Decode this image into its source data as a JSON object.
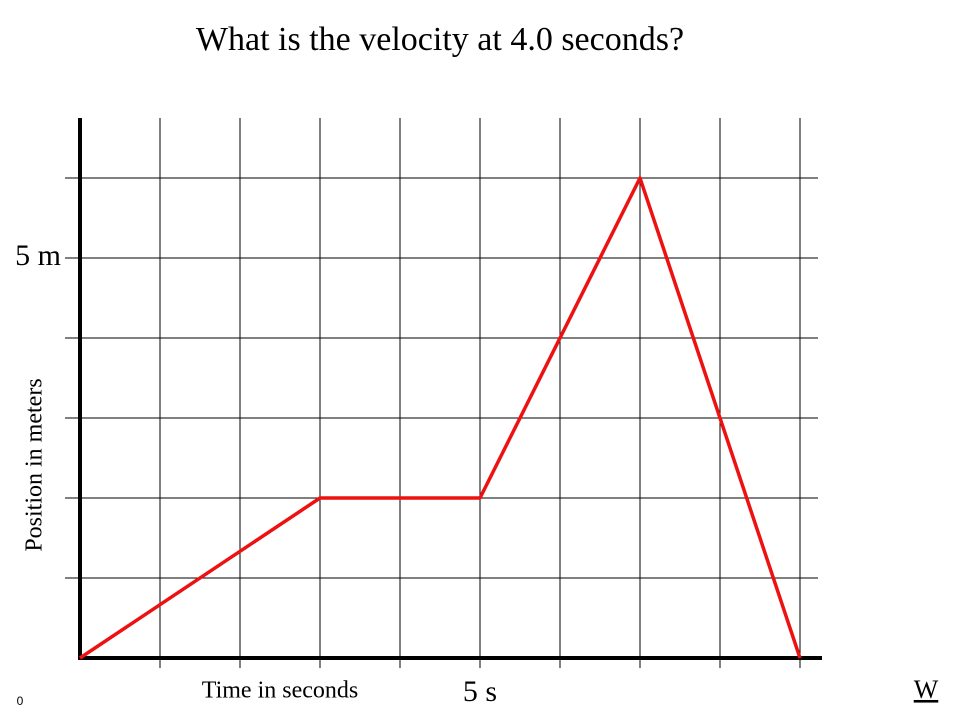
{
  "chart_data": {
    "type": "line",
    "title": "What is the velocity at 4.0 seconds?",
    "x_label": "Time in seconds",
    "y_label": "Position in meters",
    "x": [
      0,
      3,
      5,
      7,
      9
    ],
    "series": [
      {
        "color": "#ee1111",
        "values": [
          0,
          2,
          2,
          6,
          0
        ]
      }
    ],
    "xlim": [
      0,
      9.25
    ],
    "ylim": [
      0,
      6.75
    ],
    "xticks": [
      {
        "value": 1,
        "label": null
      },
      {
        "value": 2,
        "label": null
      },
      {
        "value": 3,
        "label": null
      },
      {
        "value": 4,
        "label": null
      },
      {
        "value": 5,
        "label": "5 s"
      },
      {
        "value": 6,
        "label": null
      },
      {
        "value": 7,
        "label": null
      },
      {
        "value": 8,
        "label": null
      },
      {
        "value": 9,
        "label": null
      }
    ],
    "yticks": [
      {
        "value": 1,
        "label": null
      },
      {
        "value": 2,
        "label": null
      },
      {
        "value": 3,
        "label": null
      },
      {
        "value": 4,
        "label": null
      },
      {
        "value": 5,
        "label": "5 m"
      },
      {
        "value": 6,
        "label": null
      }
    ],
    "grid": true
  },
  "slide": {
    "number": "0",
    "link": "W"
  }
}
